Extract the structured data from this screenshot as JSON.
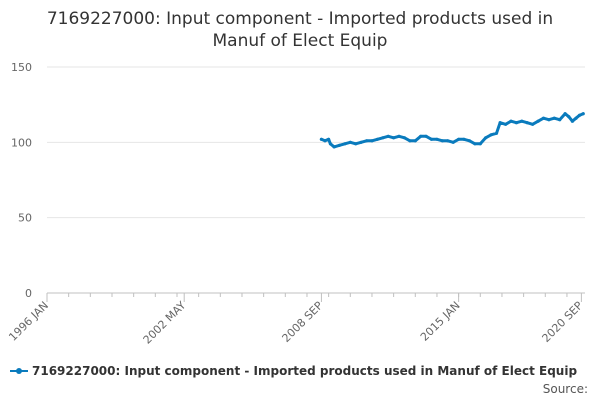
{
  "chart_data": {
    "type": "line",
    "title_lines": [
      "7169227000: Input component - Imported products used in",
      "Manuf of Elect Equip"
    ],
    "xlabel": "",
    "ylabel": "",
    "x_tick_labels": [
      "1996 JAN",
      "2002 MAY",
      "2008 SEP",
      "2015 JAN",
      "2020 SEP"
    ],
    "x_tick_dates": [
      "1996-01",
      "2002-05",
      "2008-09",
      "2015-01",
      "2020-09"
    ],
    "xlim": [
      "1996-01",
      "2020-11"
    ],
    "y_ticks": [
      0,
      50,
      100,
      150
    ],
    "ylim": [
      0,
      150
    ],
    "grid": true,
    "legend_position": "bottom-left",
    "series": [
      {
        "name": "7169227000: Input component - Imported products used in Manuf of Elect Equip",
        "color": "#0a7bbd",
        "points": [
          [
            "2008-09",
            102
          ],
          [
            "2008-11",
            101
          ],
          [
            "2009-01",
            102
          ],
          [
            "2009-02",
            99
          ],
          [
            "2009-04",
            97
          ],
          [
            "2009-07",
            98
          ],
          [
            "2009-10",
            99
          ],
          [
            "2010-01",
            100
          ],
          [
            "2010-04",
            99
          ],
          [
            "2010-07",
            100
          ],
          [
            "2010-10",
            101
          ],
          [
            "2011-01",
            101
          ],
          [
            "2011-04",
            102
          ],
          [
            "2011-07",
            103
          ],
          [
            "2011-10",
            104
          ],
          [
            "2012-01",
            103
          ],
          [
            "2012-04",
            104
          ],
          [
            "2012-07",
            103
          ],
          [
            "2012-10",
            101
          ],
          [
            "2013-01",
            101
          ],
          [
            "2013-04",
            104
          ],
          [
            "2013-07",
            104
          ],
          [
            "2013-10",
            102
          ],
          [
            "2014-01",
            102
          ],
          [
            "2014-04",
            101
          ],
          [
            "2014-07",
            101
          ],
          [
            "2014-10",
            100
          ],
          [
            "2015-01",
            102
          ],
          [
            "2015-04",
            102
          ],
          [
            "2015-07",
            101
          ],
          [
            "2015-10",
            99
          ],
          [
            "2016-01",
            99
          ],
          [
            "2016-04",
            103
          ],
          [
            "2016-07",
            105
          ],
          [
            "2016-10",
            106
          ],
          [
            "2016-12",
            113
          ],
          [
            "2017-03",
            112
          ],
          [
            "2017-06",
            114
          ],
          [
            "2017-09",
            113
          ],
          [
            "2017-12",
            114
          ],
          [
            "2018-03",
            113
          ],
          [
            "2018-06",
            112
          ],
          [
            "2018-09",
            114
          ],
          [
            "2018-12",
            116
          ],
          [
            "2019-03",
            115
          ],
          [
            "2019-06",
            116
          ],
          [
            "2019-09",
            115
          ],
          [
            "2019-12",
            119
          ],
          [
            "2020-02",
            117
          ],
          [
            "2020-04",
            114
          ],
          [
            "2020-06",
            116
          ],
          [
            "2020-08",
            118
          ],
          [
            "2020-10",
            119
          ]
        ]
      }
    ]
  },
  "source_label": "Source:"
}
